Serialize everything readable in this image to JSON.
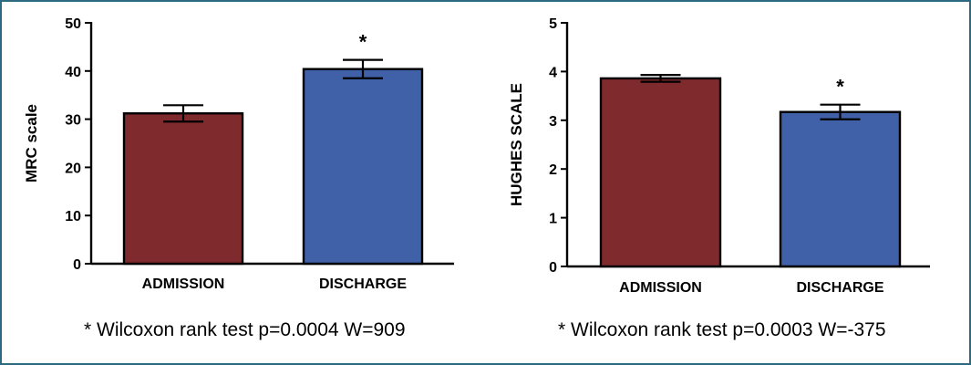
{
  "colors": {
    "admission": "#7f2a2c",
    "discharge": "#4060a7",
    "frame": "#2d6a82"
  },
  "chart_data": [
    {
      "type": "bar",
      "categories": [
        "ADMISSION",
        "DISCHARGE"
      ],
      "values": [
        31.2,
        40.4
      ],
      "errors": [
        1.7,
        1.9
      ],
      "significance": [
        "",
        "*"
      ],
      "ylabel": "MRC scale",
      "ylim": [
        0,
        50
      ],
      "yticks": [
        "0",
        "10",
        "20",
        "30",
        "40",
        "50"
      ],
      "grid": false,
      "footnote": "* Wilcoxon rank test p=0.0004 W=909"
    },
    {
      "type": "bar",
      "categories": [
        "ADMISSION",
        "DISCHARGE"
      ],
      "values": [
        3.86,
        3.17
      ],
      "errors": [
        0.07,
        0.15
      ],
      "significance": [
        "",
        "*"
      ],
      "ylabel": "HUGHES SCALE",
      "ylim": [
        0,
        5
      ],
      "yticks": [
        "0",
        "1",
        "2",
        "3",
        "4",
        "5"
      ],
      "grid": false,
      "footnote": "* Wilcoxon rank test p=0.0003 W=-375"
    }
  ]
}
